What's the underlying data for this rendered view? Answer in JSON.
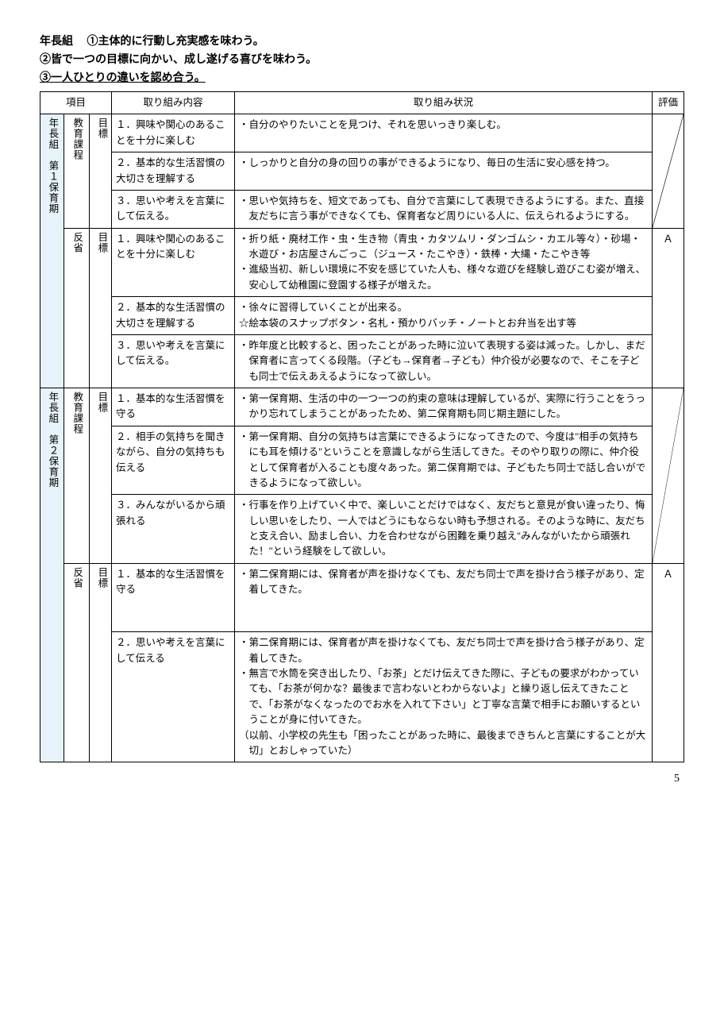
{
  "header": {
    "group": "年長組",
    "line1": "①主体的に行動し充実感を味わう。",
    "line2": "②皆で一つの目標に向かい、成し遂げる喜びを味わう。",
    "line3": "③一人ひとりの違いを認め合う。"
  },
  "columns": {
    "item": "項目",
    "content": "取り組み内容",
    "status": "取り組み状況",
    "eval": "評価"
  },
  "period1": {
    "label": "年長組　第１保育期",
    "eval": "Ａ",
    "edu": {
      "label": "教育課程",
      "goal": "目標",
      "rows": [
        {
          "c": "１．興味や関心のあることを十分に楽しむ",
          "s": "・自分のやりたいことを見つけ、それを思いっきり楽しむ。"
        },
        {
          "c": "２．基本的な生活習慣の大切さを理解する",
          "s": "・しっかりと自分の身の回りの事ができるようになり、毎日の生活に安心感を持つ。"
        },
        {
          "c": "３．思いや考えを言葉にして伝える。",
          "s": "・思いや気持ちを、短文であっても、自分で言葉にして表現できるようにする。また、直接友だちに言う事ができなくても、保育者など周りにいる人に、伝えられるようにする。"
        }
      ]
    },
    "ref": {
      "label": "反省",
      "goal": "目標",
      "rows": [
        {
          "c": "１．興味や関心のあることを十分に楽しむ",
          "s": "・折り紙・廃材工作・虫・生き物（青虫・カタツムリ・ダンゴムシ・カエル等々）・砂場・水遊び・お店屋さんごっこ（ジュース・たこやき）・鉄棒・大縄・たこやき等\n・進級当初、新しい環境に不安を感じていた人も、様々な遊びを経験し遊びこむ姿が増え、安心して幼稚園に登園する様子が増えた。"
        },
        {
          "c": "２．基本的な生活習慣の大切さを理解する",
          "s": "・徐々に習得していくことが出来る。\n☆絵本袋のスナップボタン・名札・預かりバッチ・ノートとお弁当を出す等"
        },
        {
          "c": "３．思いや考えを言葉にして伝える。",
          "s": "・昨年度と比較すると、困ったことがあった時に泣いて表現する姿は減った。しかし、まだ保育者に言ってくる段階。（子ども→保育者→子ども）仲介役が必要なので、そこを子ども同士で伝えあえるようになって欲しい。"
        }
      ]
    }
  },
  "period2": {
    "label": "年長組　第２保育期",
    "eval": "Ａ",
    "edu": {
      "label": "教育課程",
      "goal": "目標",
      "rows": [
        {
          "c": "１．基本的な生活習慣を守る",
          "s": "・第一保育期、生活の中の一つ一つの約束の意味は理解しているが、実際に行うことをうっかり忘れてしまうことがあったため、第二保育期も同じ期主題にした。"
        },
        {
          "c": "２．相手の気持ちを聞きながら、自分の気持ちも伝える",
          "s": "・第一保育期、自分の気持ちは言葉にできるようになってきたので、今度は\"相手の気持ちにも耳を傾ける\"ということを意識しながら生活してきた。そのやり取りの際に、仲介役として保育者が入ることも度々あった。第二保育期では、子どもたち同士で話し合いができるようになって欲しい。"
        },
        {
          "c": "３．みんながいるから頑張れる",
          "s": "・行事を作り上げていく中で、楽しいことだけではなく、友だちと意見が食い違ったり、悔しい思いをしたり、一人ではどうにもならない時も予想される。そのような時に、友だちと支え合い、励まし合い、力を合わせながら困難を乗り越え\"みんながいたから頑張れた！\"という経験をして欲しい。"
        }
      ]
    },
    "ref": {
      "label": "反省",
      "goal": "目標",
      "rows": [
        {
          "c": "１．基本的な生活習慣を守る",
          "s": "・第二保育期には、保育者が声を掛けなくても、友だち同士で声を掛け合う様子があり、定着してきた。"
        },
        {
          "c": "２．思いや考えを言葉にして伝える",
          "s": "・第二保育期には、保育者が声を掛けなくても、友だち同士で声を掛け合う様子があり、定着してきた。\n・無言で水筒を突き出したり、「お茶」とだけ伝えてきた際に、子どもの要求がわかっていても、「お茶が何かな？最後まで言わないとわからないよ」と繰り返し伝えてきたことで、「お茶がなくなったのでお水を入れて下さい」と丁寧な言葉で相手にお願いするということが身に付いてきた。\n（以前、小学校の先生も「困ったことがあった時に、最後まできちんと言葉にすることが大切」とおしゃっていた）"
        }
      ]
    }
  },
  "pageNumber": "5"
}
